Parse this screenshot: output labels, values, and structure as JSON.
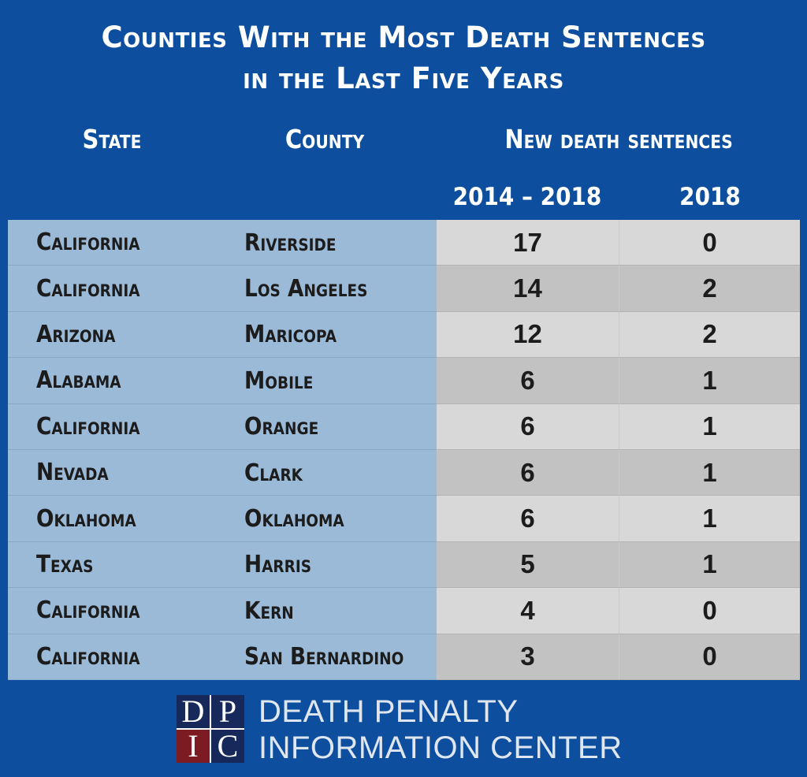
{
  "title": {
    "line1": "Counties With the Most Death Sentences",
    "line2": "in the Last Five Years"
  },
  "headers": {
    "state": "State",
    "county": "County",
    "new_sentences": "New death sentences",
    "period": "2014 – 2018",
    "year": "2018"
  },
  "colors": {
    "background": "#0d4f9e",
    "state_column": "#9bbad8",
    "light_row": "#d8d8d8",
    "dark_row": "#c2c2c2",
    "logo_blue": "#16295a",
    "logo_red": "#7d1b22"
  },
  "chart_data": {
    "type": "table",
    "title": "Counties With the Most Death Sentences in the Last Five Years",
    "columns": [
      "State",
      "County",
      "2014 – 2018",
      "2018"
    ],
    "rows": [
      {
        "state": "California",
        "county": "Riverside",
        "five_year": "17",
        "year_2018": "0"
      },
      {
        "state": "California",
        "county": "Los Angeles",
        "five_year": "14",
        "year_2018": "2"
      },
      {
        "state": "Arizona",
        "county": "Maricopa",
        "five_year": "12",
        "year_2018": "2"
      },
      {
        "state": "Alabama",
        "county": "Mobile",
        "five_year": "6",
        "year_2018": "1"
      },
      {
        "state": "California",
        "county": "Orange",
        "five_year": "6",
        "year_2018": "1"
      },
      {
        "state": "Nevada",
        "county": "Clark",
        "five_year": "6",
        "year_2018": "1"
      },
      {
        "state": "Oklahoma",
        "county": "Oklahoma",
        "five_year": "6",
        "year_2018": "1"
      },
      {
        "state": "Texas",
        "county": "Harris",
        "five_year": "5",
        "year_2018": "1"
      },
      {
        "state": "California",
        "county": "Kern",
        "five_year": "4",
        "year_2018": "0"
      },
      {
        "state": "California",
        "county": "San Bernardino",
        "five_year": "3",
        "year_2018": "0"
      }
    ]
  },
  "logo": {
    "letters": [
      "D",
      "P",
      "I",
      "C"
    ],
    "line1": "DEATH PENALTY",
    "line2": "INFORMATION CENTER"
  }
}
